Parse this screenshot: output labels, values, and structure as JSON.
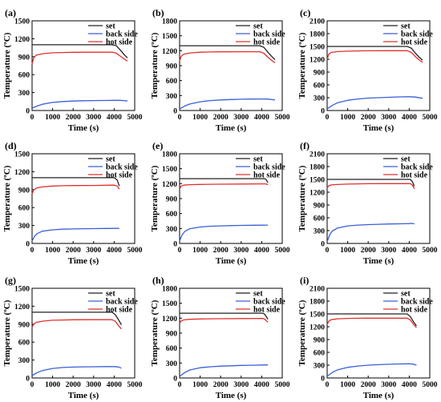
{
  "chart_data": [
    {
      "id": "a",
      "panel_label": "(a)",
      "type": "line",
      "xlabel": "Time (s)",
      "ylabel": "Temperature (ºC)",
      "xlim": [
        0,
        5000
      ],
      "ylim": [
        0,
        1500
      ],
      "xticks": [
        "0",
        "1000",
        "2000",
        "3000",
        "4000",
        "5000"
      ],
      "yticks": [
        "0",
        "300",
        "600",
        "900",
        "1200",
        "1500"
      ],
      "series": [
        {
          "name": "set",
          "color": "#222222",
          "x": [
            0,
            3900,
            4100,
            4300,
            4500,
            4650
          ],
          "y": [
            1100,
            1100,
            1085,
            1010,
            930,
            880
          ]
        },
        {
          "name": "back side",
          "color": "#3a5fd8",
          "x": [
            0,
            250,
            500,
            1000,
            1500,
            2000,
            2500,
            3000,
            3500,
            4000,
            4300,
            4650
          ],
          "y": [
            40,
            75,
            105,
            135,
            150,
            158,
            163,
            166,
            168,
            170,
            170,
            160
          ]
        },
        {
          "name": "hot side",
          "color": "#e0302c",
          "x": [
            0,
            80,
            200,
            500,
            1000,
            1500,
            2000,
            3000,
            3900,
            4100,
            4300,
            4500,
            4650
          ],
          "y": [
            780,
            880,
            925,
            950,
            965,
            970,
            973,
            975,
            975,
            960,
            910,
            860,
            825
          ]
        }
      ]
    },
    {
      "id": "b",
      "panel_label": "(b)",
      "type": "line",
      "xlabel": "Time (s)",
      "ylabel": "Temperature (ºC)",
      "xlim": [
        0,
        5000
      ],
      "ylim": [
        0,
        1800
      ],
      "xticks": [
        "0",
        "1000",
        "2000",
        "3000",
        "4000",
        "5000"
      ],
      "yticks": [
        "0",
        "300",
        "600",
        "900",
        "1200",
        "1500",
        "1800"
      ],
      "series": [
        {
          "name": "set",
          "color": "#222222",
          "x": [
            0,
            3900,
            4100,
            4300,
            4500,
            4650
          ],
          "y": [
            1300,
            1300,
            1270,
            1170,
            1080,
            1020
          ]
        },
        {
          "name": "back side",
          "color": "#3a5fd8",
          "x": [
            0,
            250,
            500,
            1000,
            1500,
            2000,
            2500,
            3000,
            3500,
            4000,
            4300,
            4650
          ],
          "y": [
            30,
            90,
            130,
            175,
            200,
            212,
            220,
            226,
            230,
            232,
            230,
            210
          ]
        },
        {
          "name": "hot side",
          "color": "#e0302c",
          "x": [
            0,
            80,
            200,
            500,
            1000,
            1500,
            2000,
            3000,
            3900,
            4100,
            4300,
            4500,
            4650
          ],
          "y": [
            1000,
            1090,
            1130,
            1155,
            1170,
            1175,
            1178,
            1180,
            1180,
            1150,
            1070,
            1000,
            960
          ]
        }
      ]
    },
    {
      "id": "c",
      "panel_label": "(c)",
      "type": "line",
      "xlabel": "Time (s)",
      "ylabel": "Temperature (ºC)",
      "xlim": [
        0,
        5000
      ],
      "ylim": [
        0,
        2100
      ],
      "xticks": [
        "0",
        "1000",
        "2000",
        "3000",
        "4000",
        "5000"
      ],
      "yticks": [
        "0",
        "300",
        "600",
        "900",
        "1200",
        "1500",
        "1800",
        "2100"
      ],
      "series": [
        {
          "name": "set",
          "color": "#222222",
          "x": [
            0,
            3900,
            4100,
            4300,
            4500,
            4650
          ],
          "y": [
            1500,
            1500,
            1460,
            1340,
            1240,
            1180
          ]
        },
        {
          "name": "back side",
          "color": "#3a5fd8",
          "x": [
            0,
            250,
            500,
            1000,
            1500,
            2000,
            2500,
            3000,
            3500,
            4000,
            4300,
            4650
          ],
          "y": [
            40,
            120,
            180,
            240,
            270,
            290,
            300,
            310,
            318,
            322,
            315,
            285
          ]
        },
        {
          "name": "hot side",
          "color": "#e0302c",
          "x": [
            0,
            80,
            200,
            500,
            1000,
            1500,
            2000,
            3000,
            3900,
            4100,
            4300,
            4500,
            4650
          ],
          "y": [
            1200,
            1320,
            1360,
            1380,
            1390,
            1395,
            1398,
            1400,
            1400,
            1360,
            1260,
            1180,
            1130
          ]
        }
      ]
    },
    {
      "id": "d",
      "panel_label": "(d)",
      "type": "line",
      "xlabel": "Time (s)",
      "ylabel": "Temperature (ºC)",
      "xlim": [
        0,
        5000
      ],
      "ylim": [
        0,
        1500
      ],
      "xticks": [
        "0",
        "1000",
        "2000",
        "3000",
        "4000",
        "5000"
      ],
      "yticks": [
        "0",
        "300",
        "600",
        "900",
        "1200",
        "1500"
      ],
      "series": [
        {
          "name": "set",
          "color": "#222222",
          "x": [
            0,
            4000,
            4150,
            4250
          ],
          "y": [
            1100,
            1100,
            1060,
            960
          ]
        },
        {
          "name": "back side",
          "color": "#3a5fd8",
          "x": [
            0,
            120,
            250,
            500,
            1000,
            1500,
            2000,
            2500,
            3000,
            3500,
            4000,
            4250
          ],
          "y": [
            40,
            120,
            165,
            205,
            228,
            238,
            243,
            246,
            248,
            250,
            252,
            252
          ]
        },
        {
          "name": "hot side",
          "color": "#e0302c",
          "x": [
            0,
            80,
            200,
            500,
            1000,
            1500,
            2000,
            3000,
            4000,
            4150,
            4250
          ],
          "y": [
            830,
            890,
            925,
            945,
            960,
            965,
            968,
            970,
            975,
            960,
            910
          ]
        }
      ]
    },
    {
      "id": "e",
      "panel_label": "(e)",
      "type": "line",
      "xlabel": "Time (s)",
      "ylabel": "Temperature (ºC)",
      "xlim": [
        0,
        5000
      ],
      "ylim": [
        0,
        1800
      ],
      "xticks": [
        "0",
        "1000",
        "2000",
        "3000",
        "4000",
        "5000"
      ],
      "yticks": [
        "0",
        "300",
        "600",
        "900",
        "1200",
        "1500",
        "1800"
      ],
      "series": [
        {
          "name": "set",
          "color": "#222222",
          "x": [
            0,
            4100,
            4200,
            4300
          ],
          "y": [
            1300,
            1300,
            1290,
            1220
          ]
        },
        {
          "name": "back side",
          "color": "#3a5fd8",
          "x": [
            0,
            120,
            250,
            500,
            1000,
            1500,
            2000,
            2500,
            3000,
            3500,
            4000,
            4300
          ],
          "y": [
            50,
            170,
            240,
            295,
            330,
            345,
            352,
            358,
            362,
            365,
            367,
            368
          ]
        },
        {
          "name": "hot side",
          "color": "#e0302c",
          "x": [
            0,
            80,
            200,
            500,
            1000,
            1500,
            2000,
            3000,
            4000,
            4200,
            4300
          ],
          "y": [
            1100,
            1150,
            1170,
            1180,
            1185,
            1188,
            1190,
            1192,
            1195,
            1195,
            1180
          ]
        }
      ]
    },
    {
      "id": "f",
      "panel_label": "(f)",
      "type": "line",
      "xlabel": "Time (s)",
      "ylabel": "Temperature (ºC)",
      "xlim": [
        0,
        5000
      ],
      "ylim": [
        0,
        2100
      ],
      "xticks": [
        "0",
        "1000",
        "2000",
        "3000",
        "4000",
        "5000"
      ],
      "yticks": [
        "0",
        "300",
        "600",
        "900",
        "1200",
        "1500",
        "1800",
        "2100"
      ],
      "series": [
        {
          "name": "set",
          "color": "#222222",
          "x": [
            0,
            4050,
            4150,
            4250
          ],
          "y": [
            1500,
            1500,
            1450,
            1340
          ]
        },
        {
          "name": "back side",
          "color": "#3a5fd8",
          "x": [
            0,
            120,
            250,
            500,
            1000,
            1500,
            2000,
            2500,
            3000,
            3500,
            4000,
            4100,
            4250
          ],
          "y": [
            40,
            200,
            290,
            360,
            410,
            430,
            440,
            448,
            455,
            460,
            465,
            470,
            460
          ]
        },
        {
          "name": "hot side",
          "color": "#e0302c",
          "x": [
            0,
            80,
            200,
            500,
            1000,
            1500,
            2000,
            3000,
            4050,
            4150,
            4250
          ],
          "y": [
            1300,
            1350,
            1370,
            1380,
            1390,
            1395,
            1398,
            1400,
            1400,
            1370,
            1280
          ]
        }
      ]
    },
    {
      "id": "g",
      "panel_label": "(g)",
      "type": "line",
      "xlabel": "Time (s)",
      "ylabel": "Temperature (ºC)",
      "xlim": [
        0,
        5000
      ],
      "ylim": [
        0,
        1500
      ],
      "xticks": [
        "0",
        "1000",
        "2000",
        "3000",
        "4000",
        "5000"
      ],
      "yticks": [
        "0",
        "300",
        "600",
        "900",
        "1200",
        "1500"
      ],
      "series": [
        {
          "name": "set",
          "color": "#222222",
          "x": [
            0,
            3900,
            4050,
            4200,
            4350
          ],
          "y": [
            1100,
            1100,
            1060,
            980,
            890
          ]
        },
        {
          "name": "back side",
          "color": "#3a5fd8",
          "x": [
            0,
            250,
            500,
            1000,
            1500,
            2000,
            2500,
            3000,
            3500,
            4000,
            4200,
            4350
          ],
          "y": [
            40,
            90,
            125,
            160,
            175,
            182,
            186,
            188,
            190,
            190,
            185,
            165
          ]
        },
        {
          "name": "hot side",
          "color": "#e0302c",
          "x": [
            0,
            80,
            200,
            500,
            1000,
            1500,
            2000,
            3000,
            3900,
            4050,
            4200,
            4350
          ],
          "y": [
            850,
            900,
            930,
            950,
            965,
            970,
            973,
            975,
            975,
            950,
            880,
            820
          ]
        }
      ]
    },
    {
      "id": "h",
      "panel_label": "(h)",
      "type": "line",
      "xlabel": "Time (s)",
      "ylabel": "Temperature (ºC)",
      "xlim": [
        0,
        5000
      ],
      "ylim": [
        0,
        1800
      ],
      "xticks": [
        "0",
        "1000",
        "2000",
        "3000",
        "4000",
        "5000"
      ],
      "yticks": [
        "0",
        "300",
        "600",
        "900",
        "1200",
        "1500",
        "1800"
      ],
      "series": [
        {
          "name": "set",
          "color": "#222222",
          "x": [
            0,
            4050,
            4150,
            4300
          ],
          "y": [
            1300,
            1300,
            1280,
            1180
          ]
        },
        {
          "name": "back side",
          "color": "#3a5fd8",
          "x": [
            0,
            250,
            500,
            1000,
            1500,
            2000,
            2500,
            3000,
            3500,
            4000,
            4300
          ],
          "y": [
            30,
            110,
            160,
            205,
            225,
            238,
            245,
            252,
            256,
            260,
            262
          ]
        },
        {
          "name": "hot side",
          "color": "#e0302c",
          "x": [
            0,
            80,
            200,
            500,
            1000,
            1500,
            2000,
            3000,
            4050,
            4150,
            4300
          ],
          "y": [
            1100,
            1145,
            1165,
            1178,
            1185,
            1188,
            1190,
            1192,
            1195,
            1180,
            1120
          ]
        }
      ]
    },
    {
      "id": "i",
      "panel_label": "(i)",
      "type": "line",
      "xlabel": "Time (s)",
      "ylabel": "Temperature (ºC)",
      "xlim": [
        0,
        5000
      ],
      "ylim": [
        0,
        2100
      ],
      "xticks": [
        "0",
        "1000",
        "2000",
        "3000",
        "4000",
        "5000"
      ],
      "yticks": [
        "0",
        "300",
        "600",
        "900",
        "1200",
        "1500",
        "1800",
        "2100"
      ],
      "series": [
        {
          "name": "set",
          "color": "#222222",
          "x": [
            0,
            3900,
            4050,
            4200,
            4350
          ],
          "y": [
            1500,
            1500,
            1440,
            1320,
            1220
          ]
        },
        {
          "name": "back side",
          "color": "#3a5fd8",
          "x": [
            0,
            250,
            500,
            1000,
            1500,
            2000,
            2500,
            3000,
            3500,
            4000,
            4200,
            4350
          ],
          "y": [
            40,
            130,
            190,
            250,
            280,
            300,
            312,
            320,
            328,
            332,
            325,
            300
          ]
        },
        {
          "name": "hot side",
          "color": "#e0302c",
          "x": [
            0,
            80,
            200,
            500,
            1000,
            1500,
            2000,
            3000,
            3900,
            4050,
            4200,
            4350
          ],
          "y": [
            1250,
            1330,
            1365,
            1385,
            1395,
            1398,
            1400,
            1400,
            1400,
            1360,
            1260,
            1180
          ]
        }
      ]
    }
  ]
}
